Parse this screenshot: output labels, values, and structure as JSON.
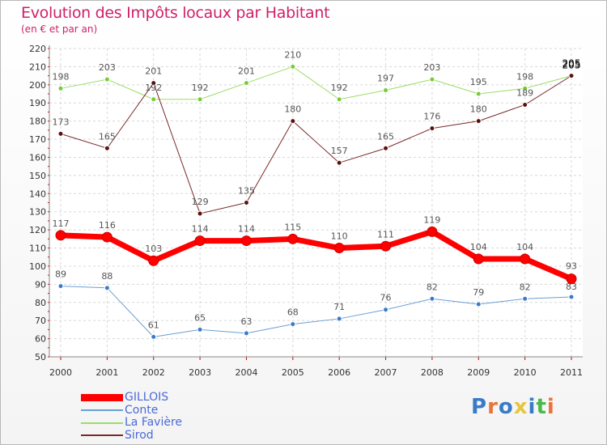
{
  "chart_data": {
    "type": "line",
    "title": "Evolution des Impôts locaux par Habitant",
    "subtitle": "(en € et par an)",
    "categories": [
      "2000",
      "2001",
      "2002",
      "2003",
      "2004",
      "2005",
      "2006",
      "2007",
      "2008",
      "2009",
      "2010",
      "2011"
    ],
    "ylim": [
      50,
      220
    ],
    "yticks": [
      50,
      60,
      70,
      80,
      90,
      100,
      110,
      120,
      130,
      140,
      150,
      160,
      170,
      180,
      190,
      200,
      210,
      220
    ],
    "grid": true,
    "legend_position": "bottom-left",
    "series": [
      {
        "name": "GILLOIS",
        "color": "#ff0000",
        "marker": "#cc0000",
        "bold": true,
        "values": [
          117,
          116,
          103,
          114,
          114,
          115,
          110,
          111,
          119,
          104,
          104,
          93
        ]
      },
      {
        "name": "Conte",
        "color": "#6a9fd4",
        "marker": "#3a7bc8",
        "bold": false,
        "values": [
          89,
          88,
          61,
          65,
          63,
          68,
          71,
          76,
          82,
          79,
          82,
          83
        ]
      },
      {
        "name": "La Favière",
        "color": "#99dd66",
        "marker": "#77cc33",
        "bold": false,
        "values": [
          198,
          203,
          192,
          192,
          201,
          210,
          192,
          197,
          203,
          195,
          198,
          205
        ]
      },
      {
        "name": "Sirod",
        "color": "#7a2a2a",
        "marker": "#5a1010",
        "bold": false,
        "values": [
          173,
          165,
          201,
          129,
          135,
          180,
          157,
          165,
          176,
          180,
          189,
          205
        ]
      }
    ]
  },
  "logo": {
    "text": "Proxiti",
    "colors": [
      "#3a7bc8",
      "#e8743b",
      "#3a7bc8",
      "#e8c53b",
      "#3a7bc8",
      "#4ab84a",
      "#e8743b"
    ]
  }
}
